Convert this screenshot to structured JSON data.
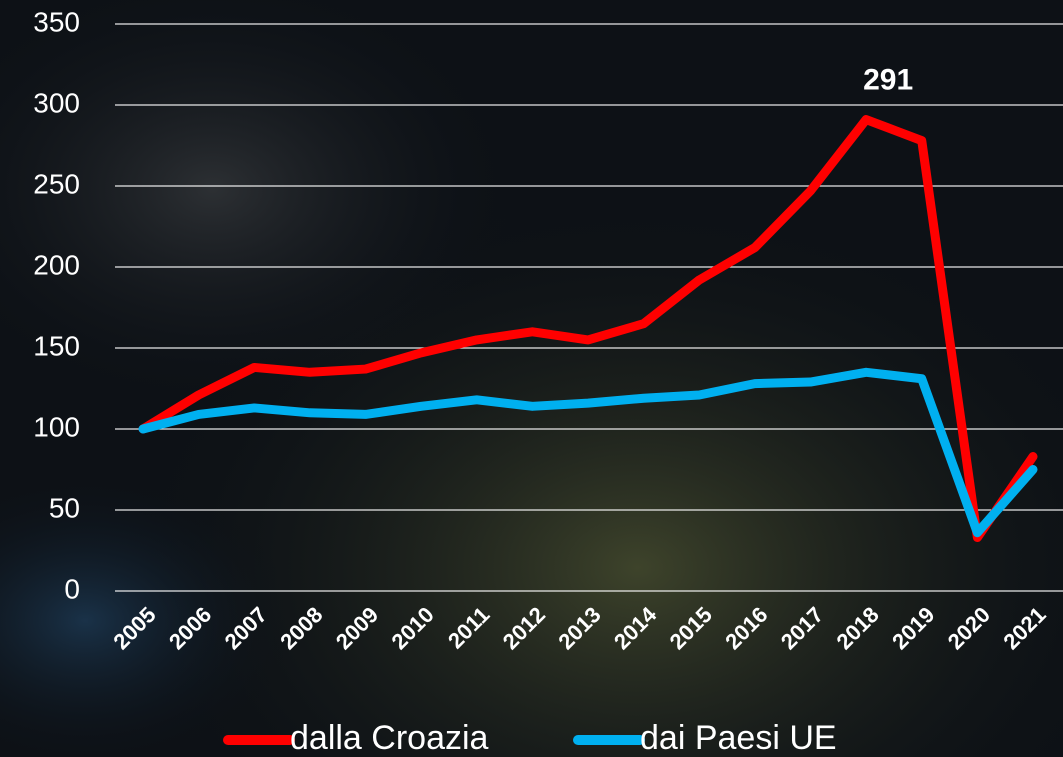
{
  "chart_data": {
    "type": "line",
    "categories": [
      "2005",
      "2006",
      "2007",
      "2008",
      "2009",
      "2010",
      "2011",
      "2012",
      "2013",
      "2014",
      "2015",
      "2016",
      "2017",
      "2018",
      "2019",
      "2020",
      "2021"
    ],
    "series": [
      {
        "name": "dalla Croazia",
        "color": "#ff0000",
        "values": [
          100,
          121,
          138,
          135,
          137,
          147,
          155,
          160,
          155,
          165,
          192,
          212,
          247,
          291,
          278,
          33,
          83
        ]
      },
      {
        "name": "dai Paesi UE",
        "color": "#00b0f0",
        "values": [
          100,
          109,
          113,
          110,
          109,
          114,
          118,
          114,
          116,
          119,
          121,
          128,
          129,
          135,
          131,
          36,
          75
        ]
      }
    ],
    "ylim": [
      0,
      350
    ],
    "yticks": [
      0,
      50,
      100,
      150,
      200,
      250,
      300,
      350
    ],
    "grid": true,
    "labeled_point": {
      "series": 0,
      "index": 13
    }
  }
}
